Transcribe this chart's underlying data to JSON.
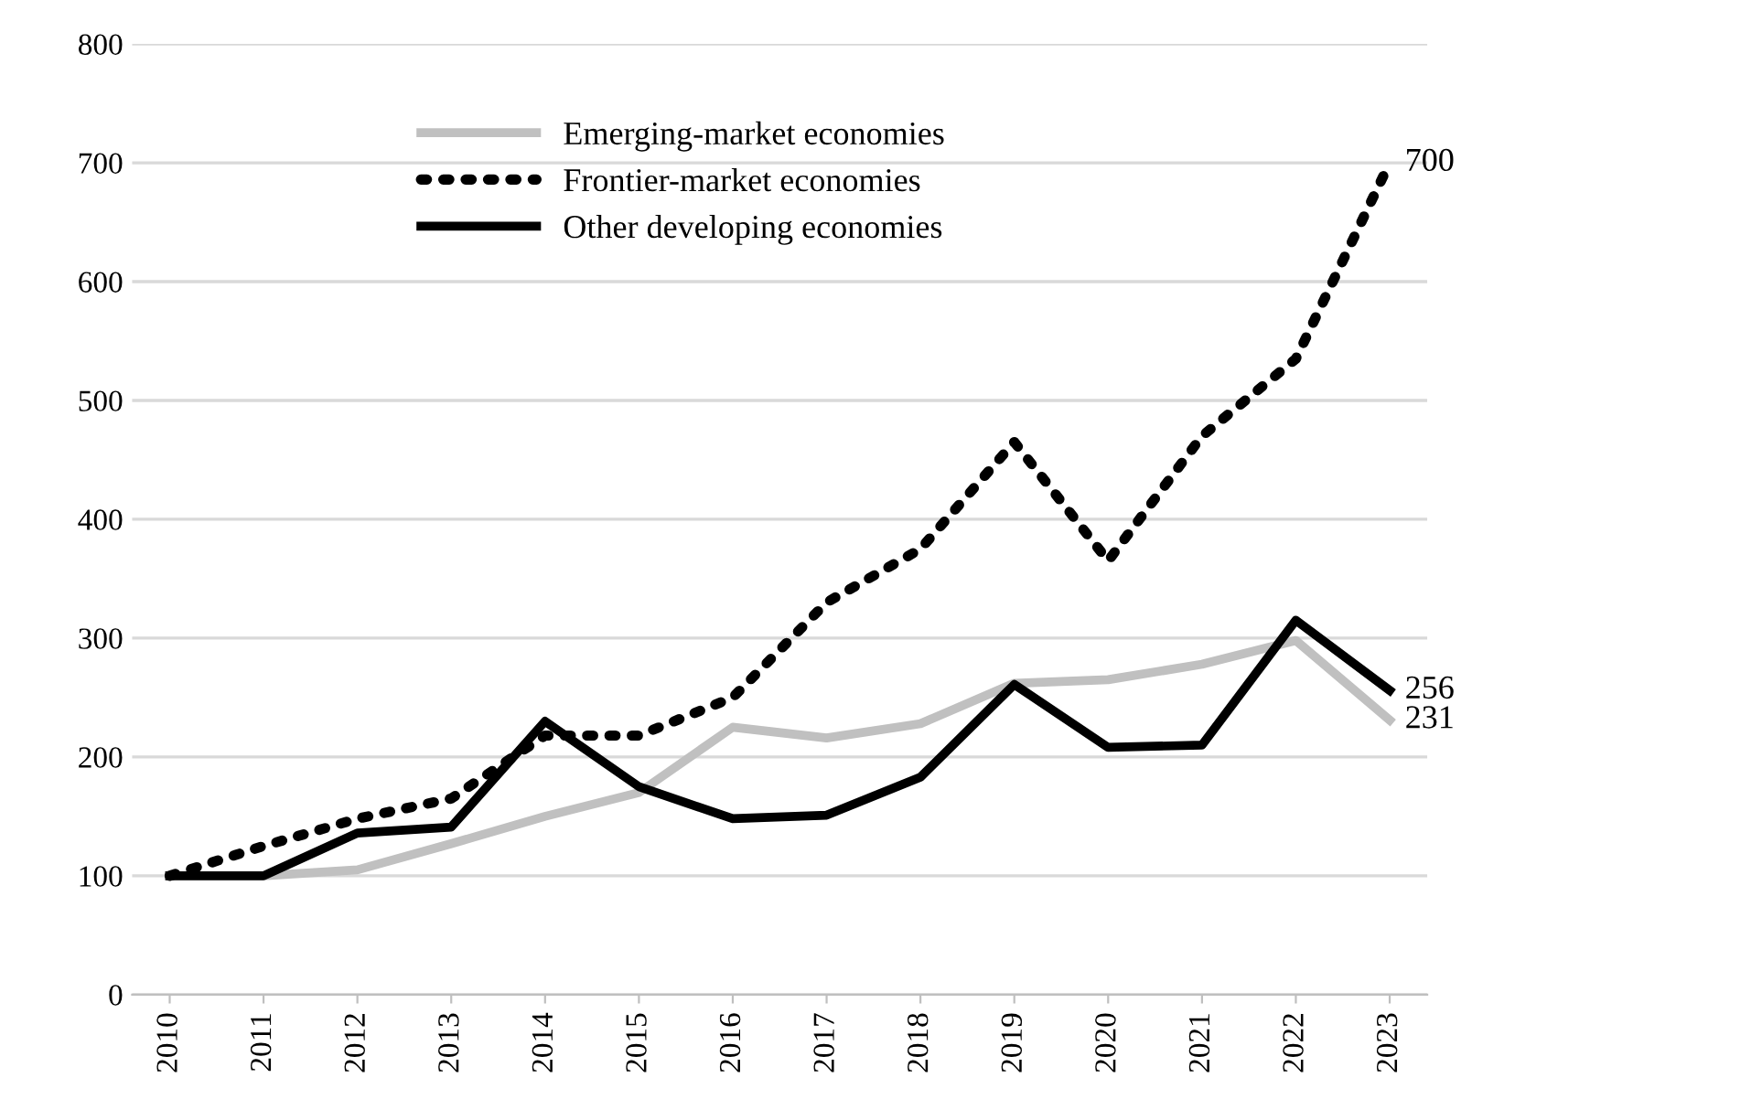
{
  "chart_data": {
    "type": "line",
    "categories": [
      "2010",
      "2011",
      "2012",
      "2013",
      "2014",
      "2015",
      "2016",
      "2017",
      "2018",
      "2019",
      "2020",
      "2021",
      "2022",
      "2023"
    ],
    "series": [
      {
        "name": "Emerging-market economies",
        "color": "#c0c0c0",
        "line_style": "solid",
        "values": [
          100,
          100,
          105,
          127,
          150,
          170,
          225,
          216,
          228,
          262,
          265,
          278,
          298,
          231
        ],
        "value_labels": [
          null,
          null,
          null,
          null,
          null,
          null,
          null,
          null,
          null,
          null,
          null,
          null,
          null,
          "231"
        ]
      },
      {
        "name": "Frontier-market economies",
        "color": "#000000",
        "line_style": "dotted",
        "values": [
          100,
          125,
          148,
          165,
          218,
          218,
          250,
          330,
          375,
          465,
          365,
          470,
          535,
          700
        ],
        "value_labels": [
          null,
          null,
          null,
          null,
          null,
          null,
          null,
          null,
          null,
          null,
          null,
          null,
          null,
          "700"
        ]
      },
      {
        "name": "Other developing economies",
        "color": "#000000",
        "line_style": "solid",
        "values": [
          100,
          100,
          136,
          141,
          230,
          175,
          148,
          151,
          183,
          261,
          208,
          210,
          315,
          256
        ],
        "value_labels": [
          null,
          null,
          null,
          null,
          null,
          null,
          null,
          null,
          null,
          null,
          null,
          null,
          null,
          "256"
        ]
      }
    ],
    "ylim": [
      0,
      800
    ],
    "yticks": [
      0,
      100,
      200,
      300,
      400,
      500,
      600,
      700,
      800
    ],
    "grid": "y",
    "legend": "top left",
    "marker": "none"
  }
}
